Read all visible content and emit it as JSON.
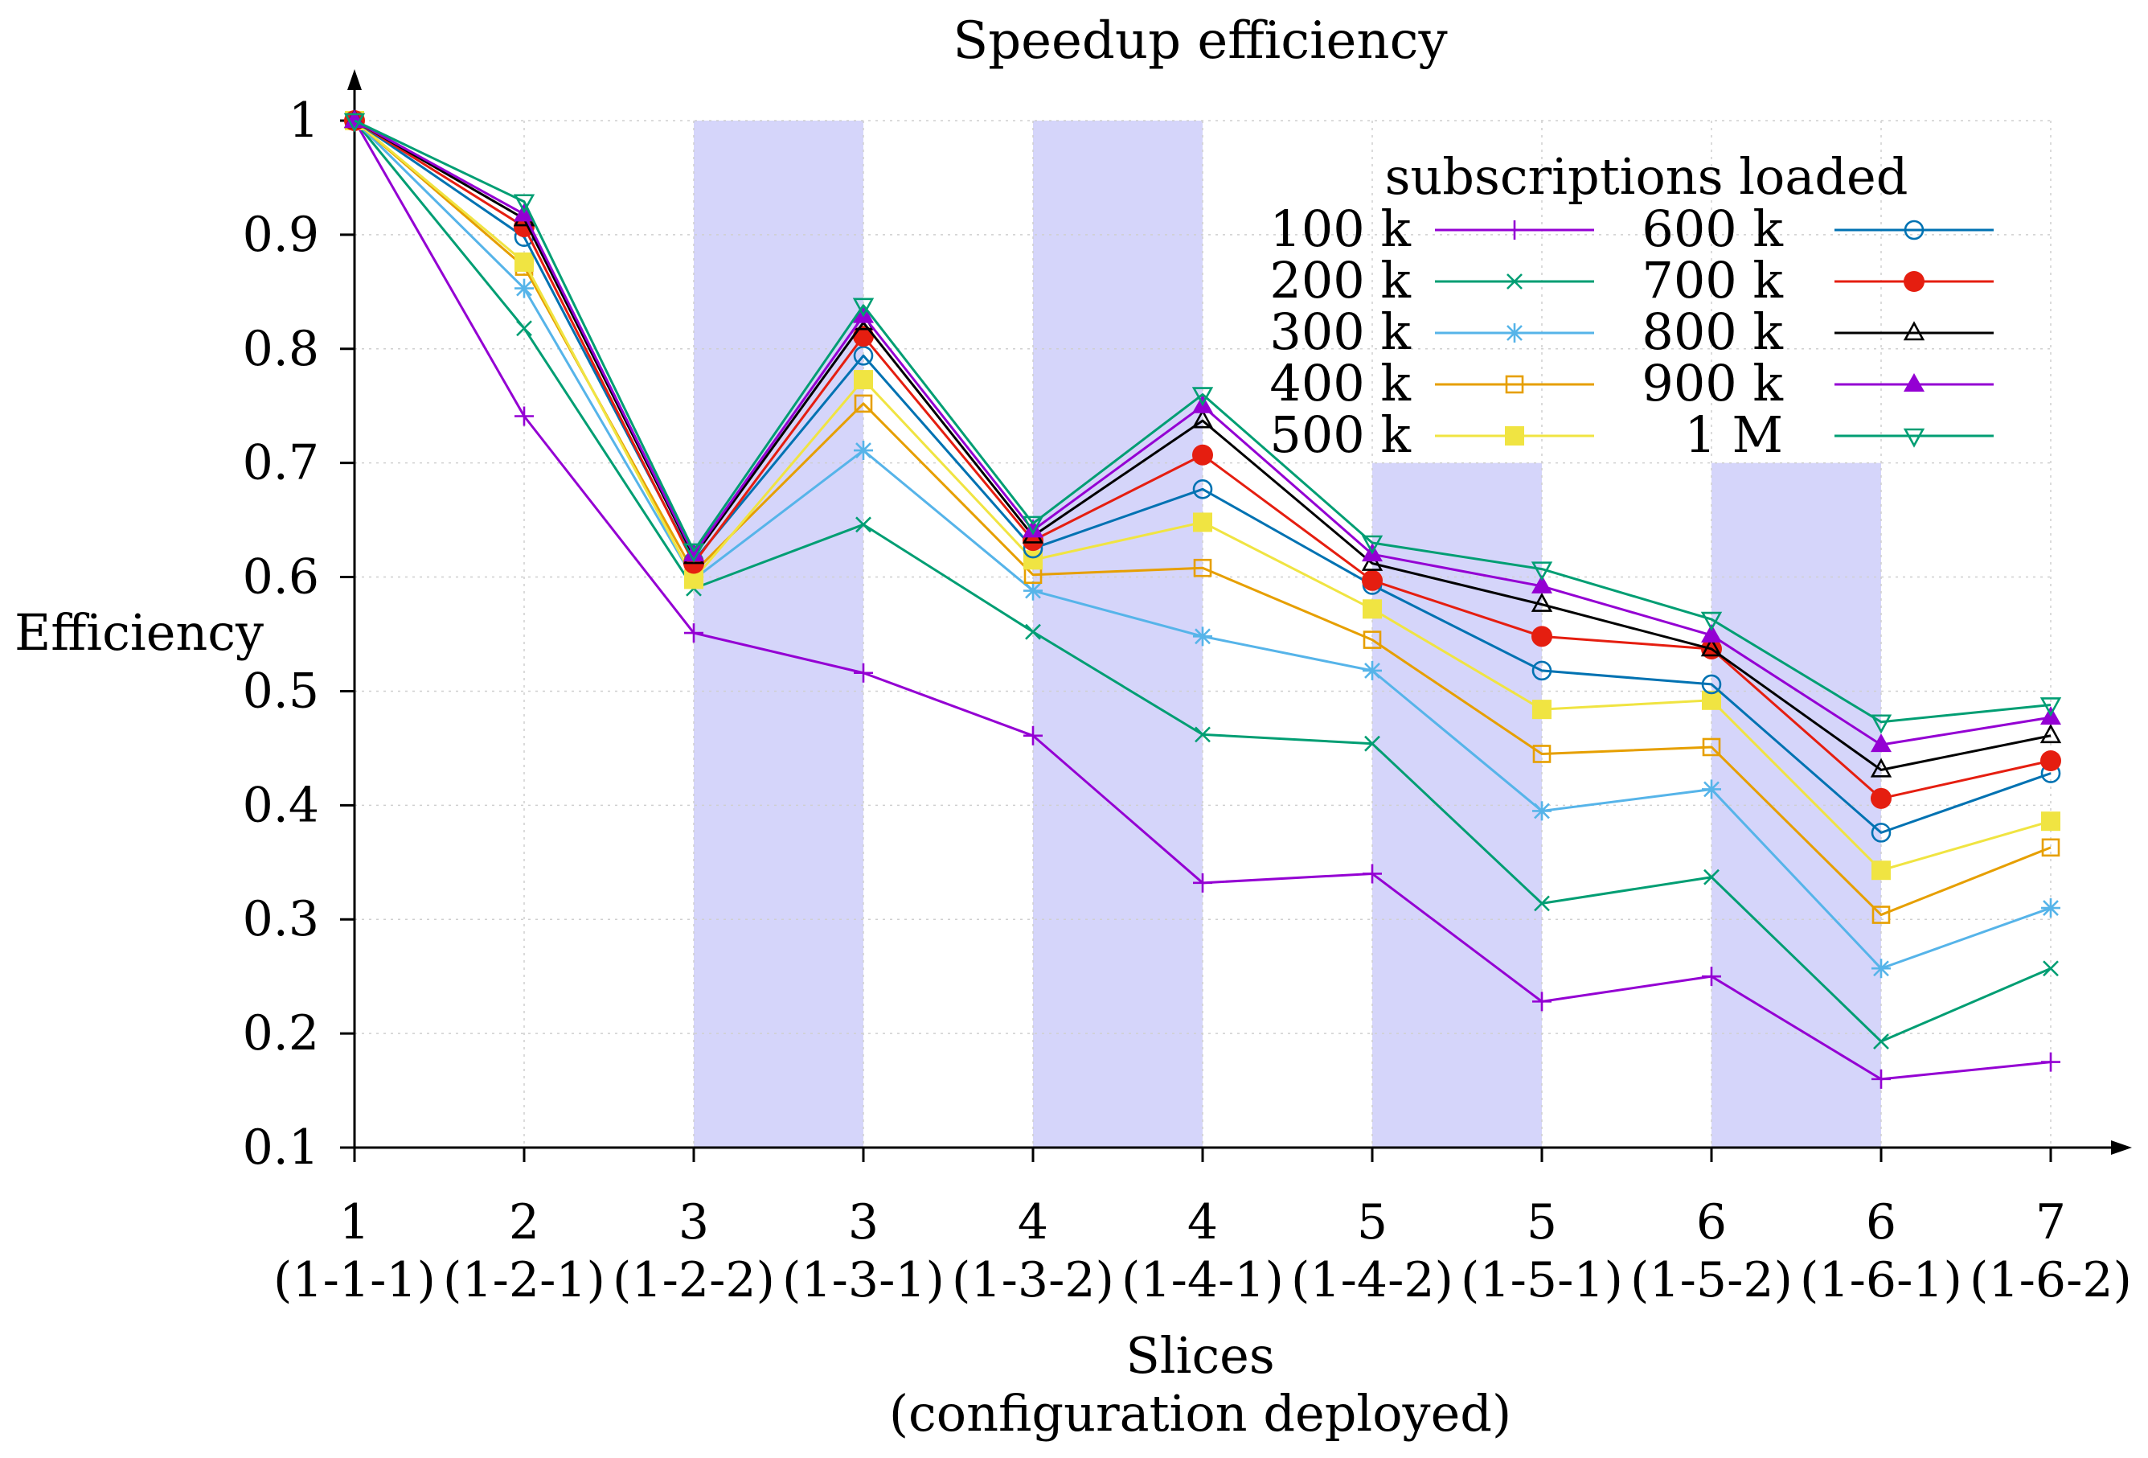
{
  "chart_data": {
    "type": "line",
    "title": "Speedup efficiency",
    "xlabel": [
      "Slices",
      "(configuration deployed)"
    ],
    "ylabel": "Efficiency",
    "ylim": [
      0.1,
      1.0
    ],
    "yticks": [
      "0.1",
      "0.2",
      "0.3",
      "0.4",
      "0.5",
      "0.6",
      "0.7",
      "0.8",
      "0.9",
      "1"
    ],
    "categories": [
      {
        "top": "1",
        "bottom": "(1-1-1)"
      },
      {
        "top": "2",
        "bottom": "(1-2-1)"
      },
      {
        "top": "3",
        "bottom": "(1-2-2)"
      },
      {
        "top": "3",
        "bottom": "(1-3-1)"
      },
      {
        "top": "4",
        "bottom": "(1-3-2)"
      },
      {
        "top": "4",
        "bottom": "(1-4-1)"
      },
      {
        "top": "5",
        "bottom": "(1-4-2)"
      },
      {
        "top": "5",
        "bottom": "(1-5-1)"
      },
      {
        "top": "6",
        "bottom": "(1-5-2)"
      },
      {
        "top": "6",
        "bottom": "(1-6-1)"
      },
      {
        "top": "7",
        "bottom": "(1-6-2)"
      }
    ],
    "shaded_category_spans": [
      [
        2,
        3
      ],
      [
        4,
        5
      ],
      [
        6,
        7
      ],
      [
        8,
        9
      ]
    ],
    "shaded_spans_ylim": [
      [
        0.1,
        1.0
      ],
      [
        0.1,
        1.0
      ],
      [
        0.1,
        0.7
      ],
      [
        0.1,
        0.7
      ]
    ],
    "shade_color": "#d5d5fa",
    "legend": {
      "title": "subscriptions loaded",
      "placement": "top-right"
    },
    "grid": "dotted",
    "series": [
      {
        "name": "100 k",
        "color": "#9400d3",
        "marker": "plus",
        "values": [
          1.0,
          0.741,
          0.551,
          0.516,
          0.461,
          0.332,
          0.34,
          0.228,
          0.25,
          0.16,
          0.175
        ]
      },
      {
        "name": "200 k",
        "color": "#009e73",
        "marker": "cross",
        "values": [
          1.0,
          0.818,
          0.59,
          0.646,
          0.552,
          0.462,
          0.454,
          0.314,
          0.337,
          0.193,
          0.257
        ]
      },
      {
        "name": "300 k",
        "color": "#56b4e9",
        "marker": "star",
        "values": [
          1.0,
          0.853,
          0.598,
          0.711,
          0.588,
          0.548,
          0.518,
          0.395,
          0.414,
          0.257,
          0.31
        ]
      },
      {
        "name": "400 k",
        "color": "#e69f00",
        "marker": "open-square",
        "values": [
          1.0,
          0.872,
          0.604,
          0.752,
          0.602,
          0.608,
          0.545,
          0.445,
          0.451,
          0.304,
          0.363
        ]
      },
      {
        "name": "500 k",
        "color": "#f0e442",
        "marker": "filled-square",
        "values": [
          1.0,
          0.876,
          0.598,
          0.773,
          0.615,
          0.648,
          0.572,
          0.484,
          0.492,
          0.343,
          0.386
        ]
      },
      {
        "name": "600 k",
        "color": "#0072b2",
        "marker": "open-circle",
        "values": [
          1.0,
          0.898,
          0.614,
          0.794,
          0.625,
          0.677,
          0.593,
          0.518,
          0.506,
          0.376,
          0.428
        ]
      },
      {
        "name": "700 k",
        "color": "#e51e10",
        "marker": "filled-circle",
        "values": [
          1.0,
          0.907,
          0.612,
          0.811,
          0.632,
          0.707,
          0.597,
          0.548,
          0.537,
          0.406,
          0.439
        ]
      },
      {
        "name": "800 k",
        "color": "#000000",
        "marker": "open-triangle",
        "values": [
          1.0,
          0.914,
          0.618,
          0.823,
          0.636,
          0.737,
          0.612,
          0.576,
          0.537,
          0.431,
          0.461
        ]
      },
      {
        "name": "900 k",
        "color": "#9400d3",
        "marker": "filled-triangle",
        "values": [
          1.0,
          0.918,
          0.62,
          0.829,
          0.641,
          0.75,
          0.62,
          0.592,
          0.549,
          0.453,
          0.477
        ]
      },
      {
        "name": "1 M",
        "color": "#009e73",
        "marker": "open-inverted-triangle",
        "values": [
          1.0,
          0.929,
          0.623,
          0.838,
          0.647,
          0.76,
          0.63,
          0.607,
          0.563,
          0.473,
          0.488
        ]
      }
    ]
  }
}
